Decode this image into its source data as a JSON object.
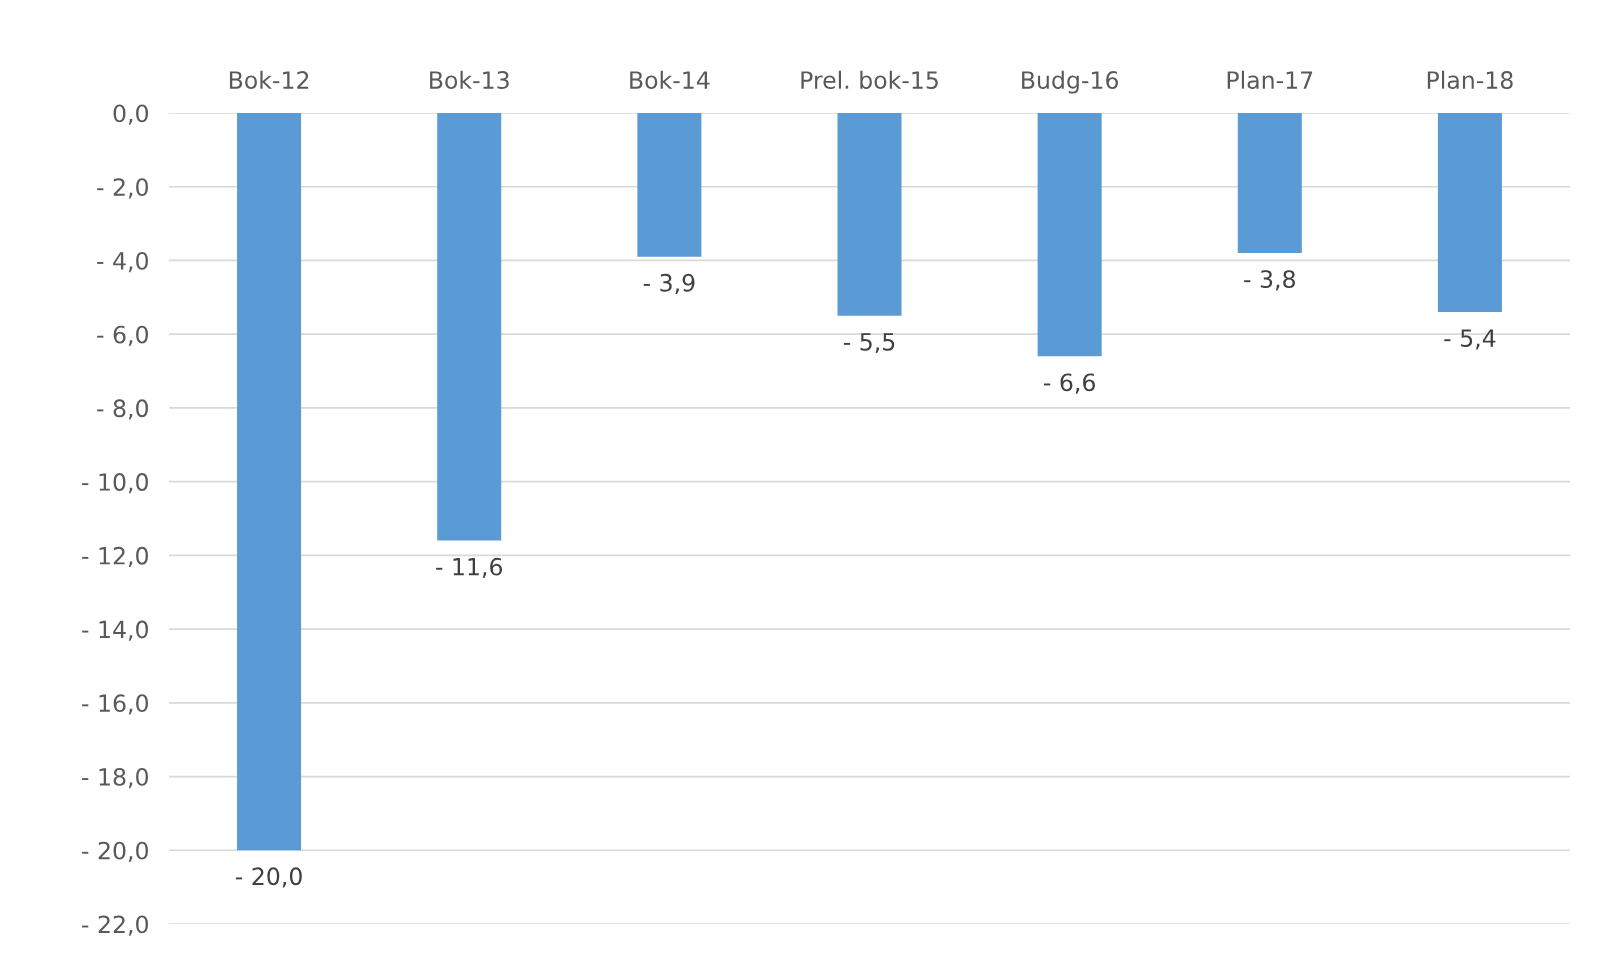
{
  "chart_data": {
    "type": "bar",
    "categories": [
      "Bok-12",
      "Bok-13",
      "Bok-14",
      "Prel. bok-15",
      "Budg-16",
      "Plan-17",
      "Plan-18"
    ],
    "values": [
      -20.0,
      -11.6,
      -3.9,
      -5.5,
      -6.6,
      -3.8,
      -5.4
    ],
    "value_labels": [
      "- 20,0",
      "- 11,6",
      "- 3,9",
      "- 5,5",
      "- 6,6",
      "- 3,8",
      "- 5,4"
    ],
    "color": "#5b9bd5",
    "ylim": [
      -22,
      0
    ],
    "yticks": [
      {
        "value": 0,
        "label": "0,0"
      },
      {
        "value": -2,
        "label": "- 2,0"
      },
      {
        "value": -4,
        "label": "- 4,0"
      },
      {
        "value": -6,
        "label": "- 6,0"
      },
      {
        "value": -8,
        "label": "- 8,0"
      },
      {
        "value": -10,
        "label": "- 10,0"
      },
      {
        "value": -12,
        "label": "- 12,0"
      },
      {
        "value": -14,
        "label": "- 14,0"
      },
      {
        "value": -16,
        "label": "- 16,0"
      },
      {
        "value": -18,
        "label": "- 18,0"
      },
      {
        "value": -20,
        "label": "- 20,0"
      },
      {
        "value": -22,
        "label": "- 22,0"
      }
    ],
    "grid": "y"
  }
}
